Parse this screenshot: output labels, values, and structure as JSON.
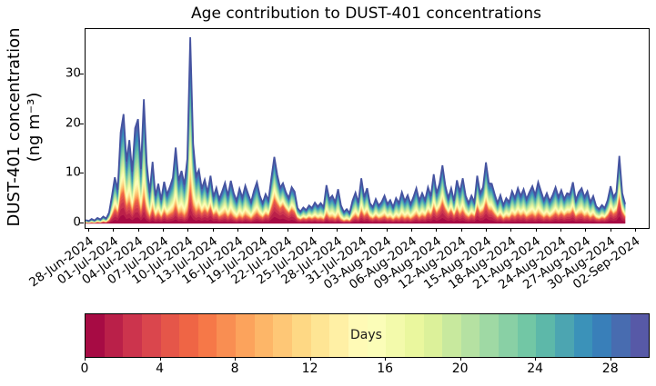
{
  "title": "Age contribution to DUST-401 concentrations",
  "y_axis": {
    "label_line1": "DUST-401 concentration",
    "label_line2": "(ng m⁻³)",
    "ticks": [
      0,
      10,
      20,
      30
    ]
  },
  "x_axis": {
    "ticks": [
      {
        "day": 0,
        "label": "28-Jun-2024"
      },
      {
        "day": 3,
        "label": "01-Jul-2024"
      },
      {
        "day": 6,
        "label": "04-Jul-2024"
      },
      {
        "day": 9,
        "label": "07-Jul-2024"
      },
      {
        "day": 12,
        "label": "10-Jul-2024"
      },
      {
        "day": 15,
        "label": "13-Jul-2024"
      },
      {
        "day": 18,
        "label": "16-Jul-2024"
      },
      {
        "day": 21,
        "label": "19-Jul-2024"
      },
      {
        "day": 24,
        "label": "22-Jul-2024"
      },
      {
        "day": 27,
        "label": "25-Jul-2024"
      },
      {
        "day": 30,
        "label": "28-Jul-2024"
      },
      {
        "day": 33,
        "label": "31-Jul-2024"
      },
      {
        "day": 36,
        "label": "03-Aug-2024"
      },
      {
        "day": 39,
        "label": "06-Aug-2024"
      },
      {
        "day": 42,
        "label": "09-Aug-2024"
      },
      {
        "day": 45,
        "label": "12-Aug-2024"
      },
      {
        "day": 48,
        "label": "15-Aug-2024"
      },
      {
        "day": 51,
        "label": "18-Aug-2024"
      },
      {
        "day": 54,
        "label": "21-Aug-2024"
      },
      {
        "day": 57,
        "label": "24-Aug-2024"
      },
      {
        "day": 60,
        "label": "27-Aug-2024"
      },
      {
        "day": 63,
        "label": "30-Aug-2024"
      },
      {
        "day": 66,
        "label": "02-Sep-2024"
      }
    ]
  },
  "colorbar": {
    "label": "Days",
    "min": 0,
    "max": 30,
    "n_segments": 30,
    "ticks": [
      0,
      4,
      8,
      12,
      16,
      20,
      24,
      28
    ]
  },
  "colors": {
    "background": "#ffffff",
    "axis": "#000000",
    "total_line": "#4553a0",
    "spectral_stops": [
      [
        0.0,
        "#9e0142"
      ],
      [
        0.1,
        "#d53e4f"
      ],
      [
        0.2,
        "#f46d43"
      ],
      [
        0.3,
        "#fdae61"
      ],
      [
        0.4,
        "#fee08b"
      ],
      [
        0.5,
        "#ffffbf"
      ],
      [
        0.6,
        "#e6f598"
      ],
      [
        0.7,
        "#abdda4"
      ],
      [
        0.8,
        "#66c2a5"
      ],
      [
        0.9,
        "#3288bd"
      ],
      [
        1.0,
        "#5e4fa2"
      ]
    ]
  },
  "chart_data": {
    "type": "area",
    "stacked": true,
    "title": "Age contribution to DUST-401 concentrations",
    "xlabel": "",
    "ylabel": "DUST-401 concentration (ng m⁻³)",
    "x_date_origin_label": "28-Jun-2024",
    "x_range_days": [
      -0.44,
      67.55
    ],
    "ylim": [
      -0.91,
      39.14
    ],
    "age_range_days": [
      0,
      30
    ],
    "n_age_bands": 30,
    "x_start_day": -0.4,
    "x_step_days": 0.35,
    "total": [
      0.7,
      0.5,
      0.9,
      0.6,
      1.1,
      0.8,
      1.4,
      1.0,
      2.2,
      5.5,
      9.3,
      6.8,
      18.3,
      22.0,
      12.5,
      16.8,
      10.4,
      19.2,
      21.0,
      11.0,
      25.0,
      12.0,
      6.2,
      12.4,
      5.6,
      8.0,
      4.8,
      8.4,
      5.8,
      7.4,
      9.2,
      15.3,
      8.6,
      10.6,
      7.8,
      13.0,
      37.5,
      16.0,
      9.6,
      10.8,
      7.0,
      8.8,
      6.2,
      9.6,
      5.4,
      7.2,
      4.9,
      6.4,
      8.2,
      5.6,
      8.6,
      6.1,
      4.6,
      7.0,
      5.2,
      7.6,
      5.9,
      4.3,
      6.6,
      8.3,
      5.6,
      4.1,
      5.9,
      4.7,
      9.2,
      13.4,
      9.8,
      7.2,
      8.1,
      6.3,
      5.1,
      7.3,
      6.4,
      3.1,
      2.4,
      3.2,
      2.7,
      3.6,
      3.1,
      4.2,
      3.4,
      4.1,
      3.3,
      7.7,
      4.9,
      5.6,
      4.3,
      6.9,
      3.6,
      2.3,
      2.9,
      2.1,
      4.6,
      6.2,
      4.2,
      9.1,
      5.3,
      7.1,
      4.1,
      3.3,
      4.9,
      3.6,
      4.3,
      5.6,
      3.9,
      4.7,
      3.3,
      5.1,
      4.1,
      6.3,
      4.5,
      5.7,
      3.9,
      5.3,
      7.1,
      4.6,
      6.1,
      4.7,
      7.3,
      5.5,
      9.9,
      6.1,
      8.0,
      11.7,
      7.6,
      5.1,
      7.1,
      4.6,
      8.7,
      6.3,
      9.1,
      5.6,
      4.1,
      5.6,
      4.3,
      9.6,
      6.1,
      7.3,
      12.3,
      8.1,
      8.0,
      5.9,
      4.1,
      5.7,
      3.7,
      5.1,
      4.3,
      6.5,
      5.1,
      7.1,
      5.5,
      6.9,
      4.9,
      6.3,
      7.5,
      5.7,
      8.3,
      6.5,
      4.7,
      6.1,
      4.5,
      5.7,
      7.3,
      5.3,
      6.7,
      4.9,
      6.1,
      5.9,
      8.3,
      4.7,
      6.3,
      7.1,
      5.3,
      6.5,
      4.3,
      5.5,
      3.5,
      2.9,
      3.7,
      3.1,
      4.7,
      7.5,
      5.3,
      6.3,
      13.6,
      6.1,
      3.9
    ],
    "young_fraction_keypoints": [
      [
        -0.4,
        0.18
      ],
      [
        2,
        0.22
      ],
      [
        3.5,
        0.28
      ],
      [
        5,
        0.2
      ],
      [
        7,
        0.15
      ],
      [
        9,
        0.22
      ],
      [
        12,
        0.12
      ],
      [
        13,
        0.2
      ],
      [
        14.5,
        0.3
      ],
      [
        16,
        0.2
      ],
      [
        18,
        0.15
      ],
      [
        20,
        0.18
      ],
      [
        22,
        0.3
      ],
      [
        23.5,
        0.42
      ],
      [
        25,
        0.3
      ],
      [
        26.5,
        0.28
      ],
      [
        28,
        0.2
      ],
      [
        30,
        0.15
      ],
      [
        32,
        0.2
      ],
      [
        34,
        0.25
      ],
      [
        36,
        0.2
      ],
      [
        38,
        0.16
      ],
      [
        40,
        0.2
      ],
      [
        42,
        0.3
      ],
      [
        43.5,
        0.34
      ],
      [
        45,
        0.22
      ],
      [
        47,
        0.3
      ],
      [
        48.5,
        0.28
      ],
      [
        50,
        0.2
      ],
      [
        52,
        0.22
      ],
      [
        54,
        0.18
      ],
      [
        56,
        0.22
      ],
      [
        58,
        0.28
      ],
      [
        60,
        0.2
      ],
      [
        61.5,
        0.25
      ],
      [
        63,
        0.3
      ],
      [
        64,
        0.35
      ],
      [
        64.7,
        0.3
      ]
    ],
    "composition": {
      "young_band_weights": [
        0.3,
        0.25,
        0.18,
        0.12,
        0.09,
        0.06
      ],
      "base_offset": 0.22,
      "base_scale": 1.55,
      "base_exponent": 1.25
    }
  }
}
